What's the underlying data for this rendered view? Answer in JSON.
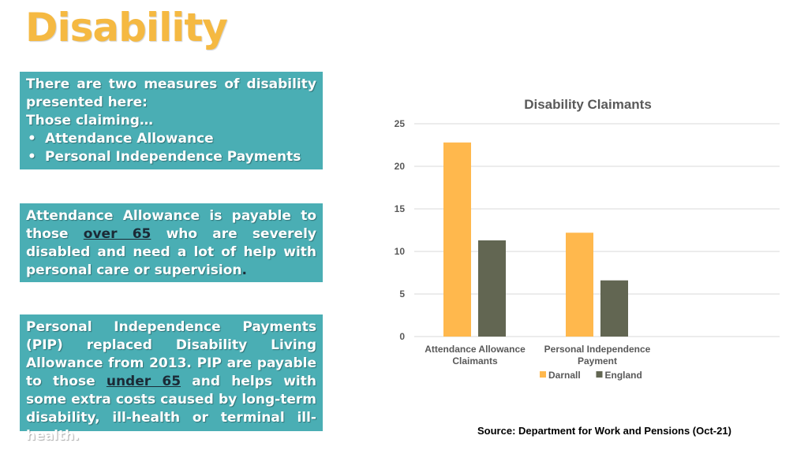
{
  "page": {
    "title": "Disability",
    "source": "Source:  Department for Work and Pensions (Oct-21)"
  },
  "box1": {
    "intro": "There are two measures of disability presented here:",
    "lead": "Those claiming…",
    "items": [
      "Attendance Allowance",
      "Personal Independence Payments"
    ]
  },
  "box2": {
    "part1": "Attendance Allowance is payable to those ",
    "highlight": "over 65",
    "part2": " who are severely disabled and need a lot of help with personal care or supervision",
    "end": "."
  },
  "box3": {
    "part1": "Personal Independence Payments (PIP) replaced Disability Living Allowance from 2013. PIP are payable to those ",
    "highlight": "under 65",
    "part2": " and helps with some extra costs caused by long-term disability, ill-health or terminal ill-health."
  },
  "chart_data": {
    "type": "bar",
    "title": "Disability Claimants",
    "categories": [
      [
        "Attendance Allowance",
        "Claimants"
      ],
      [
        "Personal Independence",
        "Payment"
      ]
    ],
    "series": [
      {
        "name": "Darnall",
        "values": [
          22.8,
          12.2
        ],
        "color": "#ffb84d"
      },
      {
        "name": "England",
        "values": [
          11.3,
          6.6
        ],
        "color": "#626652"
      }
    ],
    "ylim": [
      0,
      25
    ],
    "yticks": [
      0,
      5,
      10,
      15,
      20,
      25
    ],
    "grid": true,
    "legend": "bottom",
    "xlabel": "",
    "ylabel": ""
  },
  "colors": {
    "title": "#f5b942",
    "box_background": "#4aaeb4",
    "highlight_text": "#1b2a36"
  }
}
